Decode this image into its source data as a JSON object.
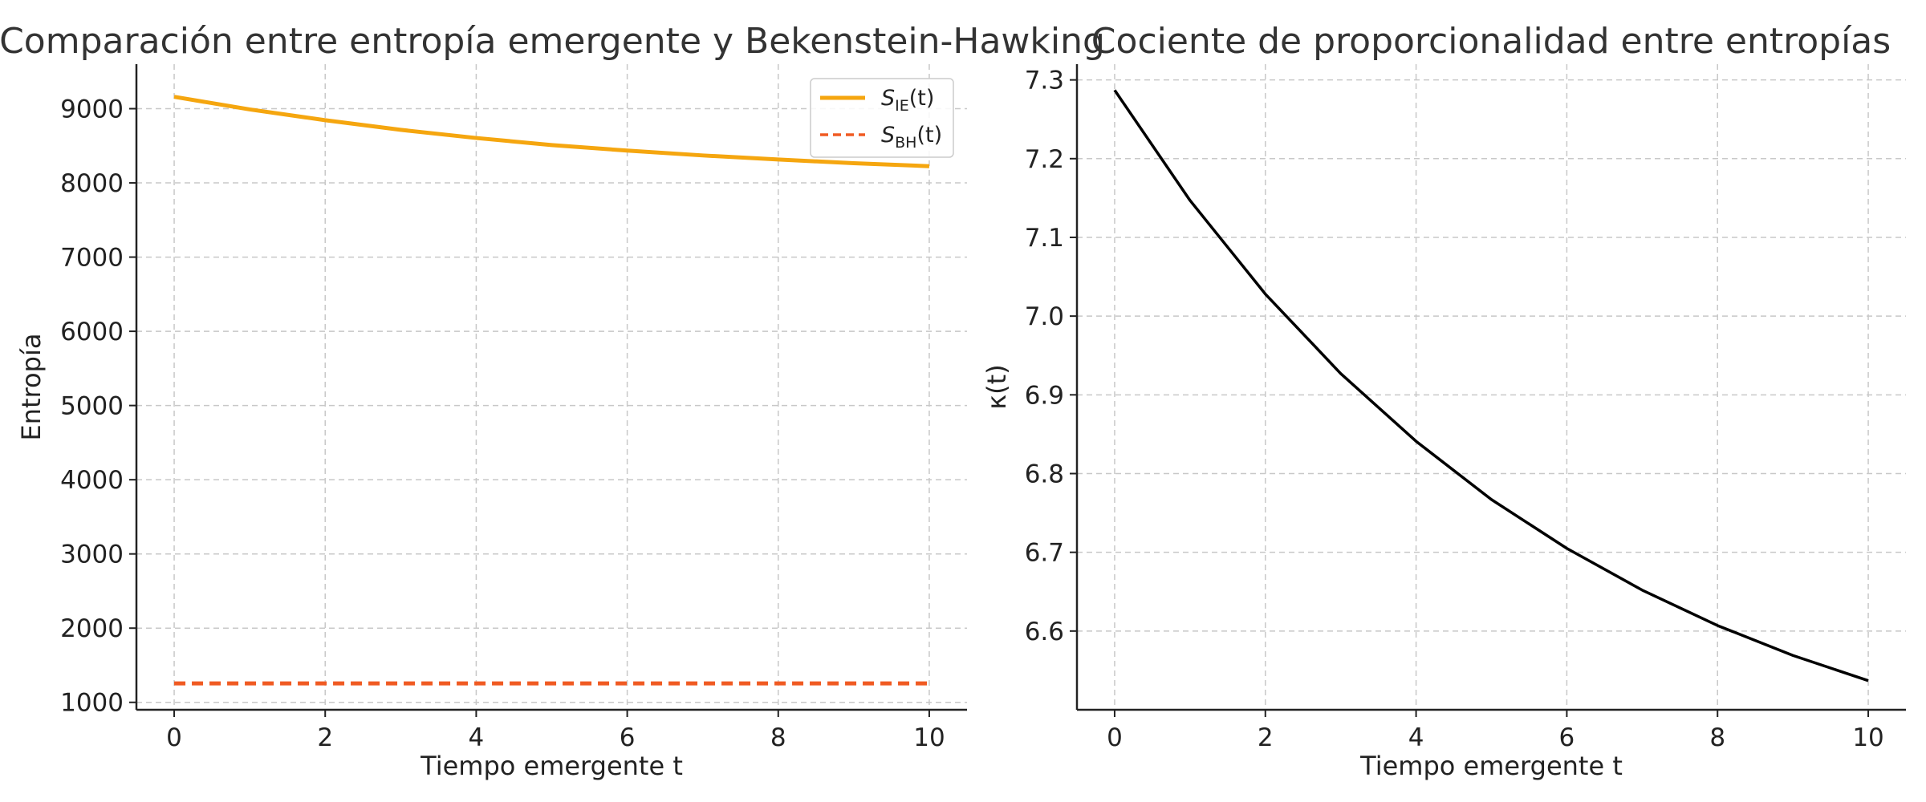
{
  "chart_data": [
    {
      "type": "line",
      "title": "Comparación entre entropía emergente y Bekenstein-Hawking",
      "xlabel": "Tiempo emergente t",
      "ylabel": "Entropía",
      "xlim": [
        -0.5,
        10.5
      ],
      "ylim": [
        900,
        9600
      ],
      "xticks": [
        0,
        2,
        4,
        6,
        8,
        10
      ],
      "xtick_labels": [
        "0",
        "2",
        "4",
        "6",
        "8",
        "10"
      ],
      "yticks": [
        1000,
        2000,
        3000,
        4000,
        5000,
        6000,
        7000,
        8000,
        9000
      ],
      "ytick_labels": [
        "1000",
        "2000",
        "3000",
        "4000",
        "5000",
        "6000",
        "7000",
        "8000",
        "9000"
      ],
      "grid": true,
      "legend_position": "top-right",
      "x": [
        0,
        1,
        2,
        3,
        4,
        5,
        6,
        7,
        8,
        9,
        10
      ],
      "series": [
        {
          "name": "S_IE(t)",
          "legend": {
            "symbol": "S",
            "sub": "IE",
            "arg": "(t)"
          },
          "color": "#f5a60f",
          "style": "solid",
          "values": [
            9160,
            8990,
            8845,
            8715,
            8605,
            8510,
            8435,
            8370,
            8315,
            8265,
            8225
          ]
        },
        {
          "name": "S_BH(t)",
          "legend": {
            "symbol": "S",
            "sub": "BH",
            "arg": "(t)"
          },
          "color": "#f05a22",
          "style": "dashed",
          "values": [
            1255,
            1255,
            1255,
            1255,
            1255,
            1255,
            1255,
            1255,
            1255,
            1255,
            1255
          ]
        }
      ]
    },
    {
      "type": "line",
      "title": "Cociente de proporcionalidad entre entropías",
      "xlabel": "Tiempo emergente t",
      "ylabel": "κ(t)",
      "xlim": [
        -0.5,
        10.5
      ],
      "ylim": [
        6.5,
        7.32
      ],
      "xticks": [
        0,
        2,
        4,
        6,
        8,
        10
      ],
      "xtick_labels": [
        "0",
        "2",
        "4",
        "6",
        "8",
        "10"
      ],
      "yticks": [
        6.6,
        6.7,
        6.8,
        6.9,
        7.0,
        7.1,
        7.2,
        7.3
      ],
      "ytick_labels": [
        "6.6",
        "6.7",
        "6.8",
        "6.9",
        "7.0",
        "7.1",
        "7.2",
        "7.3"
      ],
      "grid": true,
      "x": [
        0,
        1,
        2,
        3,
        4,
        5,
        6,
        7,
        8,
        9,
        10
      ],
      "series": [
        {
          "name": "κ(t)",
          "color": "#000000",
          "style": "solid",
          "values": [
            7.287,
            7.147,
            7.028,
            6.927,
            6.841,
            6.767,
            6.705,
            6.652,
            6.607,
            6.569,
            6.537
          ]
        }
      ]
    }
  ]
}
